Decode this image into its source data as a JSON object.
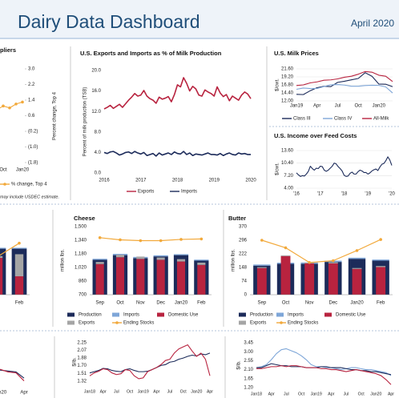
{
  "header": {
    "title": "Dairy Data Dashboard",
    "date": "April 2020"
  },
  "chart_data": [
    {
      "type": "line",
      "title": "pliers",
      "y2label": "Percent change, Top 4",
      "categories": [
        null,
        null,
        "Oct",
        null,
        null,
        "Jan20"
      ],
      "series": [
        {
          "name": "% change, Top 4",
          "color": "#f2a93b",
          "axis": "y2",
          "marker": true,
          "values": [
            1.0,
            0.9,
            1.1,
            1.0,
            1.2,
            1.3
          ]
        }
      ],
      "y2lim": [
        -1.8,
        3.0
      ],
      "y2ticks": [
        {
          "value": -1.8,
          "label": "(1.8)"
        },
        {
          "value": -1.0,
          "label": "(1.0)"
        },
        {
          "value": -0.2,
          "label": "(0.2)"
        },
        0.6,
        1.4,
        2.2,
        {
          "value": 3.0,
          "label": "3.0"
        }
      ],
      "note": "may include USDEC estimate."
    },
    {
      "type": "line",
      "title": "U.S. Exports and Imports as % of Milk Production",
      "ylabel": "Percent of milk production (TSB)",
      "categories": [
        "2016",
        null,
        null,
        null,
        null,
        null,
        null,
        null,
        null,
        null,
        null,
        null,
        "2017",
        null,
        null,
        null,
        null,
        null,
        null,
        null,
        null,
        null,
        null,
        null,
        "2018",
        null,
        null,
        null,
        null,
        null,
        null,
        null,
        null,
        null,
        null,
        null,
        "2019",
        null,
        null,
        null,
        null,
        null,
        null,
        null,
        null,
        null,
        null,
        null,
        "2020"
      ],
      "series": [
        {
          "name": "Exports",
          "color": "#b8233f",
          "values": [
            12.5,
            12.8,
            13.2,
            12.6,
            13.0,
            13.4,
            12.8,
            13.5,
            14.2,
            14.8,
            15.5,
            15.0,
            15.2,
            16.1,
            15.0,
            14.5,
            14.2,
            13.6,
            14.8,
            14.4,
            14.6,
            14.9,
            13.9,
            15.3,
            17.2,
            16.8,
            18.6,
            17.5,
            16.0,
            16.9,
            16.4,
            15.2,
            15.0,
            16.2,
            15.8,
            15.5,
            15.0,
            16.8,
            15.6,
            14.9,
            15.3,
            14.1,
            15.0,
            14.6,
            14.2,
            15.2,
            15.8,
            15.4,
            14.5
          ]
        },
        {
          "name": "Imports",
          "color": "#1c2b5a",
          "values": [
            4.0,
            3.8,
            4.1,
            4.2,
            3.9,
            3.5,
            3.7,
            4.0,
            4.1,
            3.8,
            4.2,
            3.9,
            3.7,
            4.0,
            3.4,
            3.6,
            3.8,
            3.3,
            3.9,
            3.5,
            3.7,
            3.9,
            3.6,
            4.1,
            3.8,
            3.7,
            4.2,
            3.6,
            3.9,
            3.4,
            3.7,
            3.6,
            3.5,
            3.7,
            3.9,
            3.6,
            3.6,
            3.5,
            3.8,
            3.4,
            3.7,
            3.9,
            3.6,
            3.5,
            3.9,
            3.7,
            3.8,
            3.6,
            3.6
          ]
        }
      ],
      "ylim": [
        0,
        20
      ],
      "yticks": [
        {
          "value": 0,
          "label": "0.0"
        },
        {
          "value": 4,
          "label": "4.0"
        },
        {
          "value": 8,
          "label": "8.0"
        },
        {
          "value": 12,
          "label": "12.0"
        },
        {
          "value": 16,
          "label": "16.0"
        },
        {
          "value": 20,
          "label": "20.0"
        }
      ]
    },
    {
      "type": "line",
      "title": "U.S. Milk Prices",
      "ylabel": "$/cwt.",
      "categories": [
        "Jan19",
        null,
        null,
        "Apr",
        null,
        null,
        "Jul",
        null,
        null,
        "Oct",
        null,
        null,
        "Jan20",
        null,
        null
      ],
      "series": [
        {
          "name": "Class III",
          "color": "#1c2b5a",
          "values": [
            13.96,
            13.89,
            15.04,
            15.96,
            16.38,
            16.27,
            17.55,
            17.89,
            18.31,
            18.72,
            20.45,
            19.37,
            17.05,
            17.0,
            16.25
          ]
        },
        {
          "name": "Class IV",
          "color": "#7ea6d8",
          "values": [
            15.48,
            15.86,
            15.71,
            15.72,
            16.29,
            16.83,
            16.9,
            16.74,
            16.39,
            16.39,
            16.6,
            16.7,
            16.65,
            16.2,
            14.39
          ]
        },
        {
          "name": "All-Milk",
          "color": "#b8233f",
          "values": [
            16.6,
            16.8,
            17.4,
            17.7,
            18.2,
            18.3,
            18.6,
            19.1,
            19.4,
            20.0,
            20.8,
            20.6,
            19.7,
            19.4,
            17.8
          ]
        }
      ],
      "ylim": [
        12,
        21.6
      ],
      "yticks": [
        {
          "value": 12,
          "label": "12.00"
        },
        {
          "value": 14.4,
          "label": "14.40"
        },
        {
          "value": 16.8,
          "label": "16.80"
        },
        {
          "value": 19.2,
          "label": "19.20"
        },
        {
          "value": 21.6,
          "label": "21.60"
        }
      ],
      "grid": true
    },
    {
      "type": "line",
      "title": "U.S. Income over Feed Costs",
      "ylabel": "$/cwt.",
      "categories": [
        "'16",
        null,
        null,
        null,
        null,
        null,
        null,
        null,
        null,
        null,
        null,
        null,
        "'17",
        null,
        null,
        null,
        null,
        null,
        null,
        null,
        null,
        null,
        null,
        null,
        "'18",
        null,
        null,
        null,
        null,
        null,
        null,
        null,
        null,
        null,
        null,
        null,
        "'19",
        null,
        null,
        null,
        null,
        null,
        null,
        null,
        null,
        null,
        null,
        null,
        "'20"
      ],
      "series": [
        {
          "color": "#1c2b5a",
          "values": [
            7.9,
            7.4,
            7.0,
            7.2,
            7.1,
            7.6,
            8.3,
            9.6,
            9.0,
            8.6,
            9.1,
            9.0,
            9.6,
            9.5,
            8.6,
            8.3,
            8.6,
            9.1,
            9.6,
            10.4,
            10.2,
            9.5,
            9.0,
            8.4,
            7.3,
            7.0,
            7.1,
            7.8,
            8.1,
            7.6,
            7.6,
            8.2,
            8.6,
            8.4,
            8.0,
            8.0,
            7.6,
            7.9,
            8.4,
            8.7,
            8.9,
            8.5,
            9.4,
            10.1,
            10.3,
            11.0,
            12.0,
            11.2,
            9.8
          ]
        }
      ],
      "ylim": [
        4,
        13.6
      ],
      "yticks": [
        {
          "value": 4,
          "label": "4.00"
        },
        {
          "value": 7.2,
          "label": "7.20"
        },
        {
          "value": 10.4,
          "label": "10.40"
        },
        {
          "value": 13.6,
          "label": "13.60"
        }
      ],
      "grid": true
    },
    {
      "type": "bar",
      "categories": [
        null,
        "Feb"
      ],
      "series": [
        {
          "color": "#1c2b5a",
          "values": [
            250,
            250
          ]
        },
        {
          "color": "#7ea6d8",
          "values": [
            5,
            5
          ]
        },
        {
          "color": "#b8233f",
          "values": [
            200,
            100
          ]
        },
        {
          "color": "#a5a5a5",
          "values": [
            10,
            120
          ]
        },
        {
          "color": "#f2a93b",
          "values": [
            210,
            280
          ]
        }
      ],
      "ylim": [
        0,
        370
      ]
    },
    {
      "type": "bar",
      "title": "Cheese",
      "ylabel": "million lbs.",
      "categories": [
        "Sep",
        "Oct",
        "Nov",
        "Dec",
        "Jan20",
        "Feb"
      ],
      "series": [
        {
          "name": "Production",
          "color": "#1c2b5a",
          "values": [
            1110,
            1165,
            1130,
            1150,
            1165,
            1100
          ]
        },
        {
          "name": "Imports",
          "color": "#7ea6d8",
          "values": [
            12,
            15,
            14,
            13,
            11,
            12
          ]
        },
        {
          "name": "Domestic Use",
          "color": "#b8233f",
          "values": [
            1060,
            1140,
            1120,
            1110,
            1090,
            1050
          ]
        },
        {
          "name": "Exports",
          "color": "#a5a5a5",
          "values": [
            25,
            30,
            28,
            27,
            28,
            27
          ]
        },
        {
          "name": "Ending Stocks",
          "color": "#f2a93b",
          "values": [
            1370,
            1345,
            1335,
            1335,
            1350,
            1355
          ]
        }
      ],
      "ylim": [
        700,
        1500
      ],
      "yticks": [
        700,
        860,
        {
          "value": 1020,
          "label": "1,020"
        },
        {
          "value": 1180,
          "label": "1,180"
        },
        {
          "value": 1340,
          "label": "1,340"
        },
        {
          "value": 1500,
          "label": "1,500"
        }
      ]
    },
    {
      "type": "bar",
      "title": "Butter",
      "ylabel": "million lbs.",
      "categories": [
        "Sep",
        "Oct",
        "Nov",
        "Dec",
        "Jan20",
        "Feb"
      ],
      "series": [
        {
          "name": "Production",
          "color": "#1c2b5a",
          "values": [
            158,
            168,
            168,
            178,
            195,
            185
          ]
        },
        {
          "name": "Imports",
          "color": "#7ea6d8",
          "values": [
            6,
            6,
            7,
            7,
            6,
            6
          ]
        },
        {
          "name": "Domestic Use",
          "color": "#b8233f",
          "values": [
            145,
            210,
            170,
            170,
            140,
            150
          ]
        },
        {
          "name": "Exports",
          "color": "#a5a5a5",
          "values": [
            5,
            4,
            5,
            6,
            5,
            6
          ]
        },
        {
          "name": "Ending Stocks",
          "color": "#f2a93b",
          "values": [
            296,
            255,
            175,
            185,
            240,
            300
          ]
        }
      ],
      "ylim": [
        0,
        370
      ],
      "yticks": [
        0,
        74,
        148,
        222,
        296,
        370
      ]
    },
    {
      "type": "line",
      "categories": [
        "Jan20",
        null,
        null,
        "Apr"
      ],
      "series": [
        {
          "color": "#1c2b5a",
          "values": [
            2.0,
            1.95,
            1.9,
            1.55
          ]
        },
        {
          "color": "#b8233f",
          "values": [
            2.05,
            1.9,
            1.85,
            1.4
          ]
        }
      ],
      "ylim": [
        1.2,
        3.45
      ]
    },
    {
      "type": "line",
      "ylabel": "$/lb.",
      "categories": [
        "Jan18",
        null,
        null,
        "Apr",
        null,
        null,
        "Jul",
        null,
        null,
        "Oct",
        null,
        null,
        "Jan19",
        null,
        null,
        "Apr",
        null,
        null,
        "Jul",
        null,
        null,
        "Oct",
        null,
        null,
        "Jan20",
        null,
        null,
        "Apr"
      ],
      "series": [
        {
          "color": "#1c2b5a",
          "values": [
            1.52,
            1.55,
            1.58,
            1.63,
            1.62,
            1.58,
            1.56,
            1.55,
            1.6,
            1.62,
            1.58,
            1.55,
            1.55,
            1.56,
            1.6,
            1.65,
            1.7,
            1.72,
            1.78,
            1.8,
            1.85,
            1.88,
            1.92,
            1.95,
            1.93,
            1.98,
            1.96,
            2.0
          ]
        },
        {
          "color": "#b8233f",
          "values": [
            1.45,
            1.52,
            1.56,
            1.62,
            1.6,
            1.52,
            1.48,
            1.5,
            1.6,
            1.58,
            1.45,
            1.38,
            1.4,
            1.55,
            1.6,
            1.65,
            1.72,
            1.82,
            1.85,
            2.0,
            2.1,
            2.15,
            2.2,
            2.05,
            1.92,
            2.0,
            1.85,
            1.45
          ]
        }
      ],
      "ylim": [
        1.32,
        2.25
      ],
      "yticks": [
        1.32,
        1.51,
        {
          "value": 1.7,
          "label": "1.70"
        },
        1.88,
        2.07,
        2.25
      ]
    },
    {
      "type": "line",
      "ylabel": "$/lb.",
      "categories": [
        "Jan18",
        null,
        null,
        "Apr",
        null,
        null,
        "Jul",
        null,
        null,
        "Oct",
        null,
        null,
        "Jan19",
        null,
        null,
        "Apr",
        null,
        null,
        "Jul",
        null,
        null,
        "Oct",
        null,
        null,
        "Jan20",
        null,
        null,
        "Apr"
      ],
      "series": [
        {
          "color": "#7ea6d8",
          "values": [
            2.2,
            2.25,
            2.35,
            2.6,
            2.9,
            3.1,
            3.15,
            3.05,
            2.95,
            2.8,
            2.6,
            2.35,
            2.25,
            2.25,
            2.2,
            2.2,
            2.15,
            2.1,
            2.15,
            2.2,
            2.2,
            2.15,
            2.1,
            2.1,
            2.05,
            2.0,
            1.95,
            1.8
          ]
        },
        {
          "color": "#1c2b5a",
          "values": [
            2.2,
            2.2,
            2.3,
            2.4,
            2.35,
            2.3,
            2.3,
            2.25,
            2.25,
            2.25,
            2.2,
            2.2,
            2.2,
            2.25,
            2.25,
            2.2,
            2.2,
            2.2,
            2.15,
            2.1,
            2.1,
            2.05,
            2.05,
            2.0,
            2.0,
            1.95,
            1.9,
            1.85
          ]
        },
        {
          "color": "#b8233f",
          "values": [
            2.15,
            2.15,
            2.2,
            2.25,
            2.25,
            2.3,
            2.25,
            2.3,
            2.3,
            2.25,
            2.2,
            2.2,
            2.2,
            2.15,
            2.15,
            2.1,
            2.1,
            2.05,
            2.0,
            2.05,
            2.1,
            2.05,
            2.0,
            1.95,
            1.9,
            1.8,
            1.6,
            1.35
          ]
        }
      ],
      "ylim": [
        1.2,
        3.45
      ],
      "yticks": [
        {
          "value": 1.2,
          "label": "1.20"
        },
        1.65,
        {
          "value": 2.1,
          "label": "2.10"
        },
        2.55,
        {
          "value": 3,
          "label": "3.00"
        },
        3.45
      ]
    }
  ]
}
